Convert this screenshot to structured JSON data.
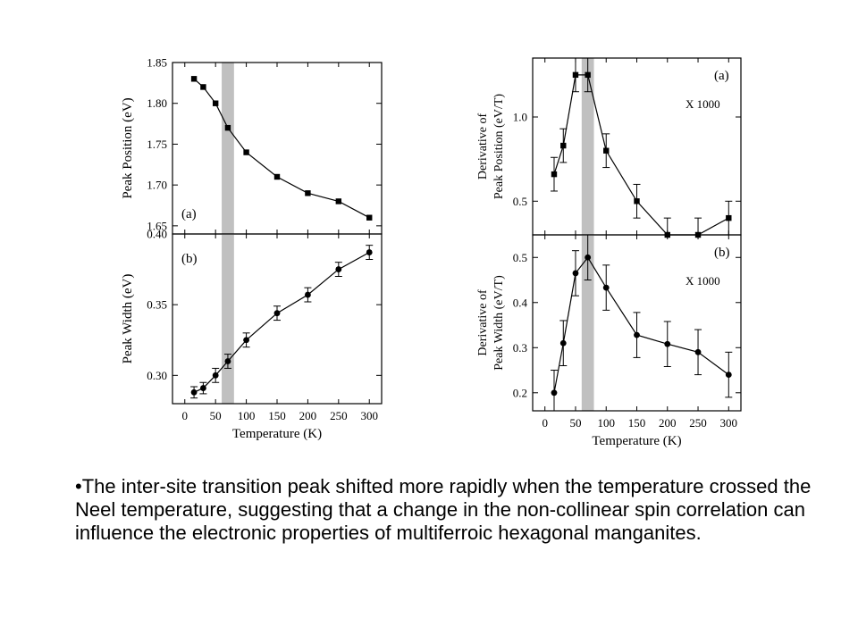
{
  "caption": "•The inter-site transition peak shifted more rapidly when the temperature crossed the Neel temperature, suggesting that a change in the non-collinear spin correlation can influence the electronic properties of multiferroic hexagonal manganites.",
  "colors": {
    "shade": "#c0c0c0",
    "ink": "#000000"
  },
  "chart_data": [
    {
      "id": "left-a",
      "type": "line",
      "panel_label": "(a)",
      "ylabel": "Peak Position (eV)",
      "xlabel": "",
      "xlim": [
        -20,
        320
      ],
      "ylim": [
        1.64,
        1.85
      ],
      "yticks": [
        "1.65",
        "1.70",
        "1.75",
        "1.80",
        "1.85"
      ],
      "ytick_values": [
        1.65,
        1.7,
        1.75,
        1.8,
        1.85
      ],
      "xticks": [],
      "marker": "square",
      "shaded_band": [
        60,
        80
      ],
      "x": [
        15,
        30,
        50,
        70,
        100,
        150,
        200,
        250,
        300
      ],
      "y": [
        1.83,
        1.82,
        1.8,
        1.77,
        1.74,
        1.71,
        1.69,
        1.68,
        1.66
      ],
      "err": [
        0,
        0,
        0,
        0,
        0,
        0,
        0,
        0,
        0
      ]
    },
    {
      "id": "left-b",
      "type": "line",
      "panel_label": "(b)",
      "ylabel": "Peak Width (eV)",
      "xlabel": "Temperature (K)",
      "xlim": [
        -20,
        320
      ],
      "ylim": [
        0.28,
        0.4
      ],
      "yticks": [
        "0.30",
        "0.35",
        "0.40"
      ],
      "ytick_values": [
        0.3,
        0.35,
        0.4
      ],
      "xticks": [
        "0",
        "50",
        "100",
        "150",
        "200",
        "250",
        "300"
      ],
      "xtick_values": [
        0,
        50,
        100,
        150,
        200,
        250,
        300
      ],
      "marker": "circle",
      "shaded_band": [
        60,
        80
      ],
      "x": [
        15,
        30,
        50,
        70,
        100,
        150,
        200,
        250,
        300
      ],
      "y": [
        0.288,
        0.291,
        0.3,
        0.31,
        0.325,
        0.344,
        0.357,
        0.375,
        0.387
      ],
      "err": [
        0.004,
        0.004,
        0.005,
        0.005,
        0.005,
        0.005,
        0.005,
        0.005,
        0.005
      ]
    },
    {
      "id": "right-a",
      "type": "line",
      "panel_label": "(a)",
      "annotation": "X 1000",
      "ylabel": [
        "Derivative of",
        "Peak Position (eV/T)"
      ],
      "xlabel": "",
      "xlim": [
        -20,
        320
      ],
      "ylim": [
        0.3,
        1.35
      ],
      "yticks": [
        "0.5",
        "1.0"
      ],
      "ytick_values": [
        0.5,
        1.0
      ],
      "xticks": [],
      "marker": "square",
      "shaded_band": [
        60,
        80
      ],
      "x": [
        15,
        30,
        50,
        70,
        100,
        150,
        200,
        250,
        300
      ],
      "y": [
        0.66,
        0.83,
        1.25,
        1.25,
        0.8,
        0.5,
        0.3,
        0.3,
        0.4
      ],
      "err": [
        0.1,
        0.1,
        0.1,
        0.1,
        0.1,
        0.1,
        0.1,
        0.1,
        0.1
      ]
    },
    {
      "id": "right-b",
      "type": "line",
      "panel_label": "(b)",
      "annotation": "X 1000",
      "ylabel": [
        "Derivative of",
        "Peak Width (eV/T)"
      ],
      "xlabel": "Temperature (K)",
      "xlim": [
        -20,
        320
      ],
      "ylim": [
        0.16,
        0.55
      ],
      "yticks": [
        "0.2",
        "0.3",
        "0.4",
        "0.5"
      ],
      "ytick_values": [
        0.2,
        0.3,
        0.4,
        0.5
      ],
      "xticks": [
        "0",
        "50",
        "100",
        "150",
        "200",
        "250",
        "300"
      ],
      "xtick_values": [
        0,
        50,
        100,
        150,
        200,
        250,
        300
      ],
      "marker": "circle",
      "shaded_band": [
        60,
        80
      ],
      "x": [
        15,
        30,
        50,
        70,
        100,
        150,
        200,
        250,
        300
      ],
      "y": [
        0.2,
        0.31,
        0.465,
        0.5,
        0.433,
        0.328,
        0.308,
        0.29,
        0.24
      ],
      "err": [
        0.05,
        0.05,
        0.05,
        0.05,
        0.05,
        0.05,
        0.05,
        0.05,
        0.05
      ]
    }
  ]
}
